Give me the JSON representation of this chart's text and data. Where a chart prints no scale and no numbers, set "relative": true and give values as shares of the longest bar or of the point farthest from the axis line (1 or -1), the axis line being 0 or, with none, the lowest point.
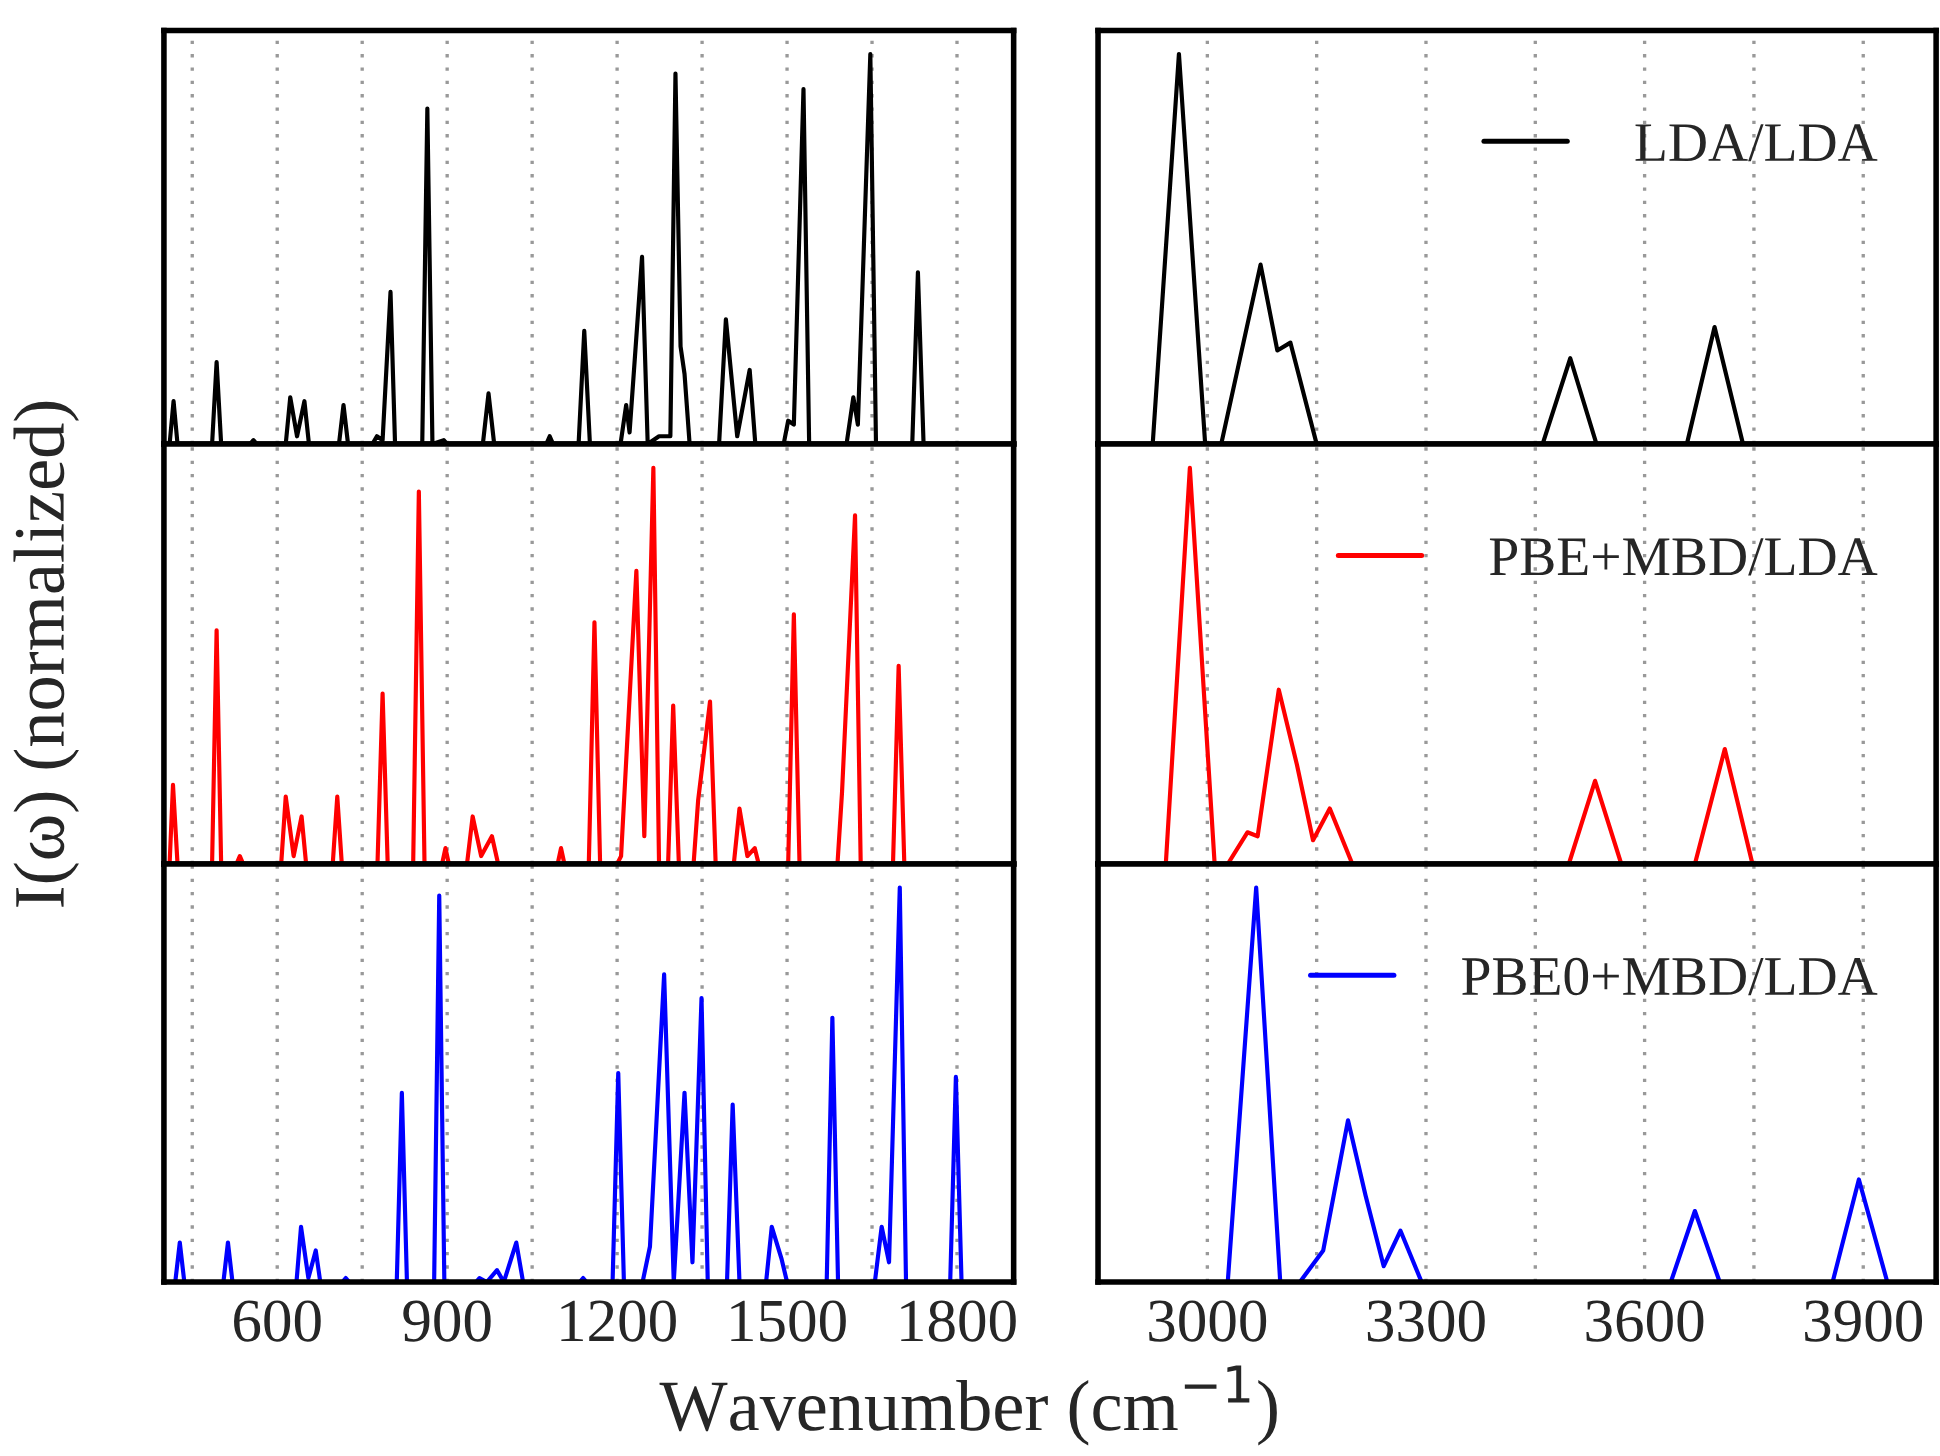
{
  "chart_data": [
    {
      "type": "line",
      "relative": true,
      "xlim": [
        400,
        1900
      ],
      "xticks": [
        {
          "value": 450,
          "label": null
        },
        600,
        {
          "value": 750,
          "label": null
        },
        900,
        {
          "value": 1050,
          "label": null
        },
        1200,
        {
          "value": 1350,
          "label": null
        },
        1500,
        {
          "value": 1650,
          "label": null
        },
        1800
      ],
      "grid": "x",
      "tick_labels": false,
      "line_style": "solid",
      "marker": "none",
      "series": [
        {
          "color": "#000000",
          "x": [
            400,
            410,
            417,
            424,
            485,
            493,
            501,
            552,
            558,
            564,
            615,
            623,
            635,
            648,
            656,
            709,
            717,
            725,
            768,
            776,
            786,
            800,
            808,
            856,
            865,
            874,
            894,
            900,
            963,
            973,
            983,
            1075,
            1081,
            1087,
            1132,
            1142,
            1152,
            1206,
            1216,
            1222,
            1244,
            1254,
            1274,
            1294,
            1303,
            1312,
            1319,
            1328,
            1380,
            1392,
            1412,
            1434,
            1444,
            1494,
            1502,
            1512,
            1529,
            1539,
            1605,
            1617,
            1625,
            1647,
            1657,
            1721,
            1731,
            1741
          ],
          "values": [
            0,
            0,
            0.11,
            0,
            0,
            0.21,
            0,
            0,
            0.01,
            0,
            0,
            0.12,
            0.02,
            0.11,
            0,
            0,
            0.1,
            0,
            0,
            0.02,
            0.01,
            0.39,
            0,
            0,
            0.86,
            0,
            0.01,
            0,
            0,
            0.13,
            0,
            0,
            0.02,
            0,
            0,
            0.29,
            0,
            0,
            0.1,
            0.03,
            0.48,
            0,
            0.02,
            0.02,
            0.95,
            0.25,
            0.18,
            0,
            0,
            0.32,
            0.02,
            0.19,
            0,
            0,
            0.06,
            0.05,
            0.91,
            0,
            0,
            0.12,
            0.05,
            1,
            0,
            0,
            0.44,
            0
          ]
        }
      ]
    },
    {
      "type": "line",
      "relative": true,
      "xlim": [
        2850,
        4000
      ],
      "xticks": [
        3000,
        {
          "value": 3150,
          "label": null
        },
        3300,
        {
          "value": 3450,
          "label": null
        },
        3600,
        {
          "value": 3750,
          "label": null
        },
        3900
      ],
      "grid": "x",
      "tick_labels": false,
      "legend": "top right",
      "line_style": "solid",
      "marker": "none",
      "series": [
        {
          "name": "LDA/LDA",
          "color": "#000000",
          "x": [
            2850,
            2925,
            2961,
            2997,
            3019,
            3073,
            3096,
            3114,
            3150,
            3460,
            3498,
            3534,
            3658,
            3696,
            3735
          ],
          "values": [
            0,
            0,
            1,
            0,
            0,
            0.46,
            0.24,
            0.26,
            0,
            0,
            0.22,
            0,
            0,
            0.3,
            0
          ]
        }
      ]
    },
    {
      "type": "line",
      "relative": true,
      "xlim": [
        400,
        1900
      ],
      "xticks": [
        {
          "value": 450,
          "label": null
        },
        600,
        {
          "value": 750,
          "label": null
        },
        900,
        {
          "value": 1050,
          "label": null
        },
        1200,
        {
          "value": 1350,
          "label": null
        },
        1500,
        {
          "value": 1650,
          "label": null
        },
        1800
      ],
      "grid": "x",
      "tick_labels": false,
      "ylabel": "I(ω) (normalized)",
      "line_style": "solid",
      "marker": "none",
      "series": [
        {
          "color": "#ff0000",
          "x": [
            400,
            410,
            416,
            424,
            485,
            493,
            501,
            528,
            534,
            540,
            607,
            615,
            629,
            643,
            651,
            698,
            706,
            714,
            777,
            786,
            795,
            840,
            850,
            860,
            891,
            897,
            903,
            935,
            945,
            960,
            979,
            990,
            1095,
            1101,
            1107,
            1150,
            1160,
            1170,
            1200,
            1207,
            1234,
            1248,
            1264,
            1274,
            1290,
            1299,
            1309,
            1335,
            1343,
            1364,
            1374,
            1406,
            1416,
            1430,
            1443,
            1450,
            1502,
            1512,
            1522,
            1589,
            1597,
            1620,
            1630,
            1687,
            1697,
            1707
          ],
          "values": [
            0,
            0,
            0.2,
            0,
            0,
            0.59,
            0,
            0,
            0.02,
            0,
            0,
            0.17,
            0.02,
            0.12,
            0,
            0,
            0.17,
            0,
            0,
            0.43,
            0,
            0,
            0.94,
            0,
            0,
            0.04,
            0,
            0,
            0.12,
            0.02,
            0.07,
            0,
            0,
            0.04,
            0,
            0,
            0.61,
            0,
            0,
            0.02,
            0.74,
            0.07,
            1,
            0,
            0,
            0.4,
            0,
            0,
            0.16,
            0.41,
            0,
            0,
            0.14,
            0.02,
            0.04,
            0,
            0,
            0.63,
            0,
            0,
            0.18,
            0.88,
            0,
            0,
            0.5,
            0
          ]
        }
      ]
    },
    {
      "type": "line",
      "relative": true,
      "xlim": [
        2850,
        4000
      ],
      "xticks": [
        3000,
        {
          "value": 3150,
          "label": null
        },
        3300,
        {
          "value": 3450,
          "label": null
        },
        3600,
        {
          "value": 3750,
          "label": null
        },
        3900
      ],
      "grid": "x",
      "tick_labels": false,
      "legend": "top right",
      "line_style": "solid",
      "marker": "none",
      "series": [
        {
          "name": "PBE+MBD/LDA",
          "color": "#ff0000",
          "x": [
            2850,
            2943,
            2976,
            3010,
            3028,
            3055,
            3069,
            3098,
            3123,
            3145,
            3168,
            3199,
            3496,
            3532,
            3568,
            3669,
            3710,
            3748
          ],
          "values": [
            0,
            0,
            1,
            0,
            0,
            0.08,
            0.07,
            0.44,
            0.25,
            0.06,
            0.14,
            0,
            0,
            0.21,
            0,
            0,
            0.29,
            0
          ]
        }
      ]
    },
    {
      "type": "line",
      "relative": true,
      "xlim": [
        400,
        1900
      ],
      "xticks": [
        {
          "value": 450,
          "label": null
        },
        600,
        {
          "value": 750,
          "label": null
        },
        900,
        {
          "value": 1050,
          "label": null
        },
        1200,
        {
          "value": 1350,
          "label": null
        },
        1500,
        {
          "value": 1650,
          "label": null
        },
        1800
      ],
      "grid": "x",
      "tick_labels": "x",
      "xlabel": "Wavenumber (cm$^{−1}$)",
      "line_style": "solid",
      "marker": "none",
      "series": [
        {
          "color": "#0000ff",
          "x": [
            400,
            420,
            428,
            436,
            505,
            513,
            521,
            634,
            642,
            655,
            668,
            676,
            715,
            721,
            727,
            811,
            820,
            829,
            877,
            886,
            895,
            951,
            957,
            970,
            988,
            1000,
            1022,
            1034,
            1134,
            1140,
            1146,
            1192,
            1202,
            1212,
            1245,
            1258,
            1283,
            1300,
            1319,
            1333,
            1349,
            1360,
            1394,
            1404,
            1416,
            1463,
            1473,
            1490,
            1500,
            1570,
            1580,
            1590,
            1655,
            1667,
            1680,
            1699,
            1710,
            1788,
            1798,
            1808
          ],
          "values": [
            0,
            0,
            0.1,
            0,
            0,
            0.1,
            0,
            0,
            0.14,
            0.01,
            0.08,
            0,
            0,
            0.01,
            0,
            0,
            0.48,
            0,
            0,
            0.98,
            0,
            0,
            0.01,
            0,
            0.03,
            0,
            0.1,
            0,
            0,
            0.01,
            0,
            0,
            0.53,
            0,
            0,
            0.09,
            0.78,
            0,
            0.48,
            0.05,
            0.72,
            0,
            0,
            0.45,
            0,
            0,
            0.14,
            0.06,
            0,
            0,
            0.67,
            0,
            0,
            0.14,
            0.05,
            1,
            0,
            0,
            0.52,
            0
          ]
        }
      ]
    },
    {
      "type": "line",
      "relative": true,
      "xlim": [
        2850,
        4000
      ],
      "xticks": [
        3000,
        {
          "value": 3150,
          "label": null
        },
        3300,
        {
          "value": 3450,
          "label": null
        },
        3600,
        {
          "value": 3750,
          "label": null
        },
        3900
      ],
      "grid": "x",
      "tick_labels": "x",
      "legend": "top right",
      "line_style": "solid",
      "marker": "none",
      "series": [
        {
          "name": "PBE0+MBD/LDA",
          "color": "#0000ff",
          "x": [
            2850,
            3028,
            3067,
            3100,
            3127,
            3159,
            3193,
            3217,
            3242,
            3265,
            3294,
            3636,
            3669,
            3703,
            3858,
            3894,
            3933
          ],
          "values": [
            0,
            0,
            1,
            0,
            0,
            0.08,
            0.41,
            0.22,
            0.04,
            0.13,
            0,
            0,
            0.18,
            0,
            0,
            0.26,
            0
          ]
        }
      ]
    }
  ]
}
